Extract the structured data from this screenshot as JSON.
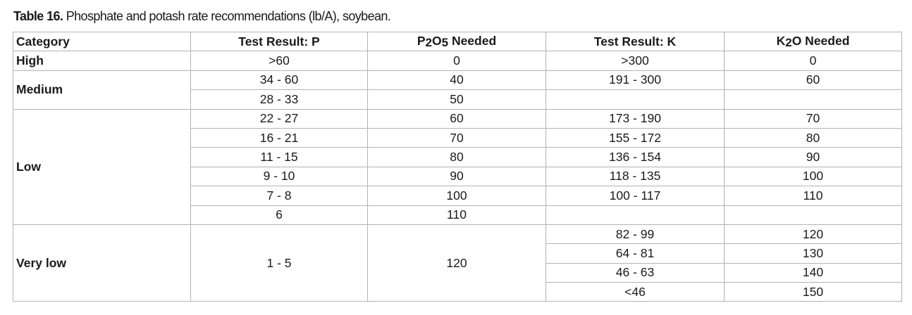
{
  "caption": {
    "label": "Table 16.",
    "text": " Phosphate and potash rate recommendations (lb/A), soybean."
  },
  "headers": {
    "category": "Category",
    "test_p": "Test Result: P",
    "p2o5": "P2O5 Needed",
    "test_k": "Test Result: K",
    "k2o": "K2O Needed"
  },
  "categories": {
    "high": "High",
    "medium": "Medium",
    "low": "Low",
    "very_low": "Very low"
  },
  "rows": [
    {
      "p": ">60",
      "p2o5": "0",
      "k": ">300",
      "k2o": "0"
    },
    {
      "p": "34 - 60",
      "p2o5": "40",
      "k": "191 - 300",
      "k2o": "60"
    },
    {
      "p": "28 - 33",
      "p2o5": "50",
      "k": "",
      "k2o": ""
    },
    {
      "p": "22 - 27",
      "p2o5": "60",
      "k": "173 - 190",
      "k2o": "70"
    },
    {
      "p": "16 - 21",
      "p2o5": "70",
      "k": "155 - 172",
      "k2o": "80"
    },
    {
      "p": "11 - 15",
      "p2o5": "80",
      "k": "136 - 154",
      "k2o": "90"
    },
    {
      "p": "9 - 10",
      "p2o5": "90",
      "k": "118 - 135",
      "k2o": "100"
    },
    {
      "p": "7 - 8",
      "p2o5": "100",
      "k": "100 - 117",
      "k2o": "110"
    },
    {
      "p": "6",
      "p2o5": "110",
      "k": "",
      "k2o": ""
    }
  ],
  "very_low": {
    "p": "1 - 5",
    "p2o5": "120",
    "k_rows": [
      {
        "k": "82 - 99",
        "k2o": "120"
      },
      {
        "k": "64 - 81",
        "k2o": "130"
      },
      {
        "k": "46 - 63",
        "k2o": "140"
      },
      {
        "k": "<46",
        "k2o": "150"
      }
    ]
  }
}
